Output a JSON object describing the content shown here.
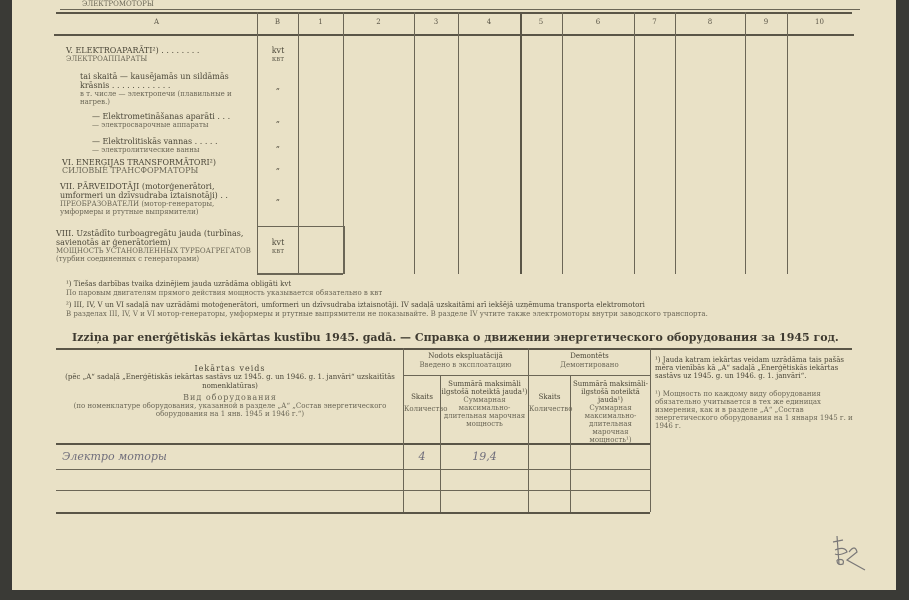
{
  "top_strip": {
    "cut_label": "ЭЛЕКТРОМОТОРЫ"
  },
  "upper_table": {
    "column_headers": [
      "A",
      "B",
      "1",
      "2",
      "3",
      "4",
      "5",
      "6",
      "7",
      "8",
      "9",
      "10"
    ],
    "rows": [
      {
        "lv": "V. ELEKTROAPARĀTI²) . . . . . . . .",
        "ru": "ЭЛЕКТРОАППАРАТЫ",
        "unit": "kvt",
        "unit_ru": "квт"
      },
      {
        "lv": "tai skaitā — kausējamās un sildāmās krāsnis . . . . . . . . . . . .",
        "ru": "в т. числе — электропечи (плавильные и нагрев.)",
        "unit": "„"
      },
      {
        "lv": "— Elektrometināšanas aparāti . . .",
        "ru": "— электросварочные аппараты",
        "unit": "„"
      },
      {
        "lv": "— Elektrolitiskās vannas . . . . .",
        "ru": "— электролитические ванны",
        "unit": "„"
      },
      {
        "lv": "VI. ENERĢIJAS TRANSFORMĀTORI²)",
        "ru": "СИЛОВЫЕ ТРАНСФОРМАТОРЫ",
        "unit": "„"
      },
      {
        "lv": "VII. PĀRVEIDOTĀJI (motorģenerātori, umformeri un dzīvsudraba iztaisnotāji) . .",
        "ru": "ПРЕОБРАЗОВАТЕЛИ (мотор-генераторы, умформеры и ртутные выпрямители)",
        "unit": "„"
      },
      {
        "lv": "VIII. Uzstādīto turboagregātu jauda (turbīnas, savienotās ar ģenerātoriem)",
        "ru": "МОЩНОСТЬ УСТАНОВЛЕННЫХ ТУРБОАГРЕГАТОВ (турбин соединенных с генераторами)",
        "unit": "kvt",
        "unit_ru": "квт"
      }
    ]
  },
  "footnotes": [
    {
      "lv": "¹) Tiešas darbības tvaika dzinējiem jauda uzrādāma obligāti kvt",
      "ru": "По паровым двигателям прямого действия мощность указывается обязательно в квт"
    },
    {
      "lv": "²) III, IV, V un VI sadaļā nav uzrādāmi motoģenerātori, umformeri un dzīvsudraba iztaisnotāji.  IV sadaļā uzskaitāmi arī iekšējā uzņēmuma transporta elektromotori",
      "ru": "В разделах III, IV, V и VI мотор-генераторы, умформеры и ртутные выпрямители не показывайте. В разделе IV учтите также электромоторы внутри заводского транспорта."
    }
  ],
  "section_title": "Izziņa par enerģētiskās iekārtas kustību 1945. gadā. — Справка о движении энергетического оборудования за 1945 год.",
  "lower_table": {
    "type_header": {
      "lv": "Iekārtas veids",
      "lv_note": "(pēc „A“ sadaļā „Enerģētiskās iekārtas sastāvs uz 1945. g. un 1946. g. 1. janvāri“ uzskaitītās nomenklatūras)",
      "ru": "Вид оборудования",
      "ru_note": "(по номенклатуре оборудования, указанной в разделе „А“ „Состав энергетического оборудования на 1 янв. 1945 и 1946 г.“)"
    },
    "groups": [
      {
        "lv": "Nodots ekspluatācijā",
        "ru": "Введено в эксплоатацию",
        "count_lv": "Skaits",
        "count_ru": "Количество",
        "power_lv": "Summārā maksimāli ilgstošā noteiktā jauda¹)",
        "power_ru": "Суммарная максимально-длительная марочная мощность"
      },
      {
        "lv": "Demontēts",
        "ru": "Демонтировано",
        "count_lv": "Skaits",
        "count_ru": "Количество",
        "power_lv": "Summārā maksimāli-ilgstošā noteiktā jauda¹)",
        "power_ru": "Суммарная максимально-длительная марочная мощность¹)"
      }
    ],
    "rows": [
      {
        "type": "Электро моторы",
        "in_count": "4",
        "in_power": "19,4",
        "out_count": "",
        "out_power": ""
      }
    ],
    "side_notes": {
      "lv": "¹) Jauda katram iekārtas veidam uzrādāma tais pašās mēra vienībās kā „A“ sadaļā „Enerģētiskās iekārtas sastāvs uz 1945. g. un 1946. g. 1. janvāri“.",
      "ru": "¹) Мощность по каждому виду оборудования обязательно учитывается в тех же единицах измерения, как и в разделе „А“ „Состав энергетического оборудования на 1 января 1945 г. и 1946 г."
    }
  },
  "signature": "handwritten initials"
}
